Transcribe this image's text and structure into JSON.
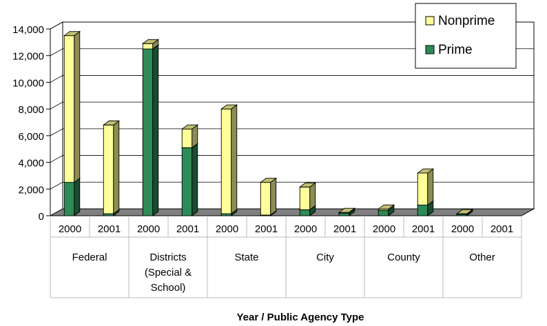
{
  "chart_data": {
    "type": "bar",
    "stacked": true,
    "three_d": true,
    "groups": [
      {
        "label": "Federal",
        "years": [
          "2000",
          "2001"
        ]
      },
      {
        "label": "Districts (Special & School)",
        "label_lines": [
          "Districts",
          "(Special &",
          "School)"
        ],
        "years": [
          "2000",
          "2001"
        ]
      },
      {
        "label": "State",
        "years": [
          "2000",
          "2001"
        ]
      },
      {
        "label": "City",
        "years": [
          "2000",
          "2001"
        ]
      },
      {
        "label": "County",
        "years": [
          "2000",
          "2001"
        ]
      },
      {
        "label": "Other",
        "years": [
          "2000",
          "2001"
        ]
      }
    ],
    "categories": [
      "Federal 2000",
      "Federal 2001",
      "Districts 2000",
      "Districts 2001",
      "State 2000",
      "State 2001",
      "City 2000",
      "City 2001",
      "County 2000",
      "County 2001",
      "Other 2000",
      "Other 2001"
    ],
    "series": [
      {
        "name": "Prime",
        "color": "#2e8b57",
        "values": [
          2500,
          150,
          12500,
          5100,
          150,
          50,
          450,
          200,
          400,
          800,
          100,
          0
        ]
      },
      {
        "name": "Nonprime",
        "color": "#ffff99",
        "values": [
          11000,
          6650,
          400,
          1400,
          7850,
          2450,
          1700,
          50,
          100,
          2400,
          50,
          0
        ]
      }
    ],
    "y_ticks": [
      "0",
      "2,000",
      "4,000",
      "6,000",
      "8,000",
      "10,000",
      "12,000",
      "14,000"
    ],
    "ylim": [
      0,
      14000
    ],
    "xlabel": "Year / Public Agency Type",
    "ylabel": "",
    "title": "",
    "legend": {
      "position": "top-right",
      "order": [
        "Nonprime",
        "Prime"
      ]
    },
    "grid": true
  }
}
